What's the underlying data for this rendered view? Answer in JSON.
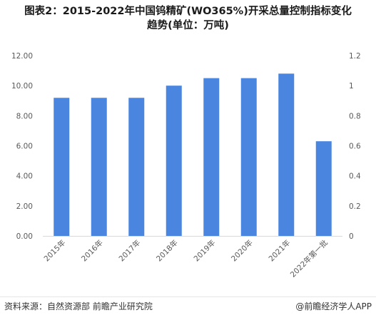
{
  "header": {
    "title_line1": "图表2：2015-2022年中国钨精矿(WO365%)开采总量控制指标变化",
    "title_line2": "趋势(单位：万吨)"
  },
  "footer": {
    "source": "资料来源：自然资源部 前瞻产业研究院",
    "brand": "@前瞻经济学人APP"
  },
  "colors": {
    "bar": "#4A86E0",
    "axis": "#D9D9D9",
    "text": "#595959"
  },
  "chart_data": {
    "type": "bar",
    "categories": [
      "2015年",
      "2016年",
      "2017年",
      "2018年",
      "2019年",
      "2020年",
      "2021年",
      "2022年第一批"
    ],
    "values": [
      9.19,
      9.19,
      9.19,
      10.0,
      10.5,
      10.5,
      10.8,
      6.3
    ],
    "ylim": [
      0,
      12
    ],
    "yticks": [
      "0.00",
      "2.00",
      "4.00",
      "6.00",
      "8.00",
      "10.00",
      "12.00"
    ],
    "y2lim": [
      0,
      1.2
    ],
    "y2ticks": [
      "0",
      "0.2",
      "0.4",
      "0.6",
      "0.8",
      "1",
      "1.2"
    ],
    "grid": false,
    "legend": "none"
  }
}
